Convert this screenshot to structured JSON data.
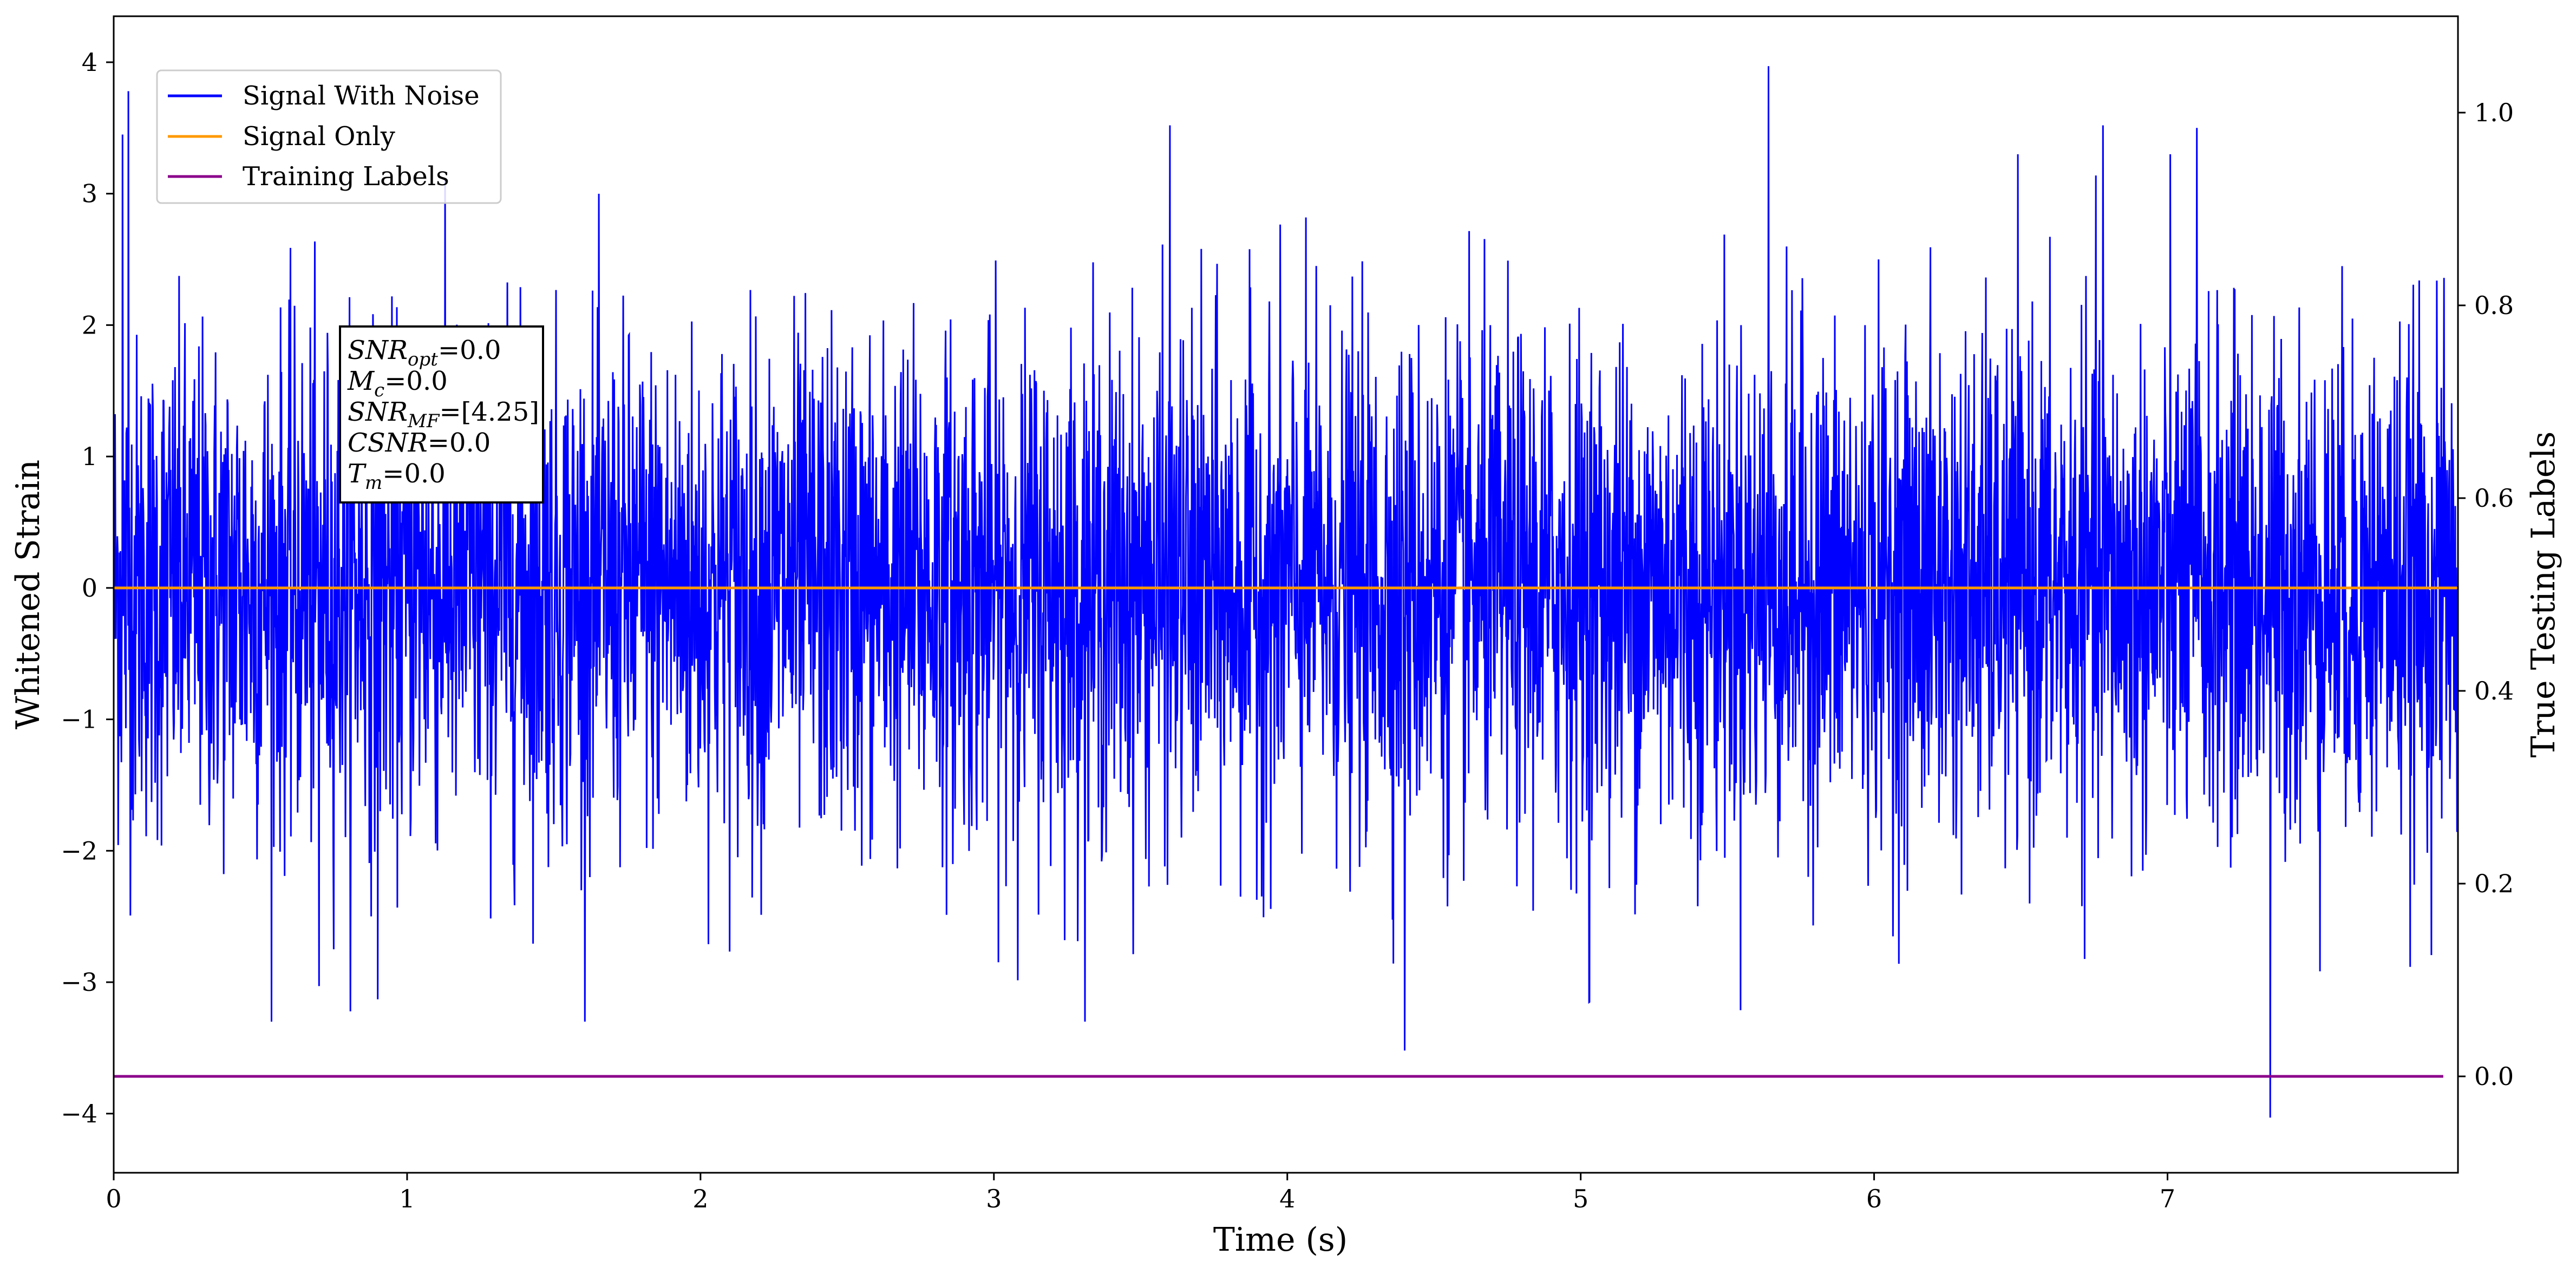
{
  "chart_data": {
    "type": "line",
    "title": "",
    "xlabel": "Time (s)",
    "ylabel": "Whitened Strain",
    "y2label": "True Testing Labels",
    "xlim": [
      0,
      7.99
    ],
    "ylim": [
      -4.45,
      4.35
    ],
    "y2lim": [
      -0.1,
      1.1
    ],
    "xticks": [
      0,
      1,
      2,
      3,
      4,
      5,
      6,
      7
    ],
    "xtick_labels": [
      "0",
      "1",
      "2",
      "3",
      "4",
      "5",
      "6",
      "7"
    ],
    "yticks": [
      -4,
      -3,
      -2,
      -1,
      0,
      1,
      2,
      3,
      4
    ],
    "ytick_labels": [
      "−4",
      "−3",
      "−2",
      "−1",
      "0",
      "1",
      "2",
      "3",
      "4"
    ],
    "y2ticks": [
      0.0,
      0.2,
      0.4,
      0.6,
      0.8,
      1.0
    ],
    "y2tick_labels": [
      "0.0",
      "0.2",
      "0.4",
      "0.6",
      "0.8",
      "1.0"
    ],
    "grid": false,
    "legend_position": "top-left",
    "series": [
      {
        "name": "Signal With Noise",
        "color": "#0000ff",
        "axis": "left",
        "description_values": "dense noise, sample rate ~ 2048 Hz",
        "peaks": [
          {
            "x": 0.03,
            "y": 3.45
          },
          {
            "x": 0.05,
            "y": 3.78
          },
          {
            "x": 3.6,
            "y": 3.52
          },
          {
            "x": 5.64,
            "y": 3.97
          },
          {
            "x": 4.4,
            "y": -3.52
          },
          {
            "x": 7.35,
            "y": -4.03
          },
          {
            "x": 0.9,
            "y": -3.13
          },
          {
            "x": 0.7,
            "y": -3.03
          },
          {
            "x": 5.03,
            "y": -3.15
          },
          {
            "x": 6.78,
            "y": 3.52
          },
          {
            "x": 7.1,
            "y": 3.5
          }
        ]
      },
      {
        "name": "Signal Only",
        "color": "#ff9900",
        "axis": "left",
        "x": [
          0,
          7.99
        ],
        "y": [
          0.0,
          0.0
        ]
      },
      {
        "name": "Training Labels",
        "color": "#8b008b",
        "axis": "right",
        "x": [
          0,
          7.94
        ],
        "y": [
          0.0,
          0.0
        ]
      }
    ],
    "legend": [
      "Signal With Noise",
      "Signal Only",
      "Training Labels"
    ],
    "annotation": [
      {
        "base": "SNR",
        "sub": "opt",
        "value": "=0.0"
      },
      {
        "base": "M",
        "sub": "c",
        "value": "=0.0"
      },
      {
        "base": "SNR",
        "sub": "MF",
        "value": "=[4.25]"
      },
      {
        "base": "CSNR",
        "sub": "",
        "value": "=0.0"
      },
      {
        "base": "T",
        "sub": "m",
        "value": "=0.0"
      }
    ]
  }
}
